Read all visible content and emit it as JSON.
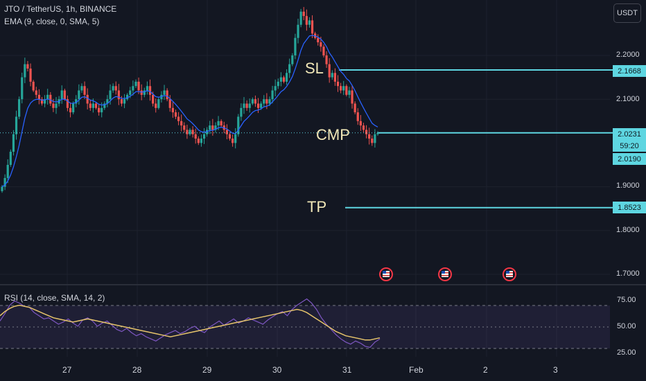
{
  "header": {
    "symbol_line": "JTO / TetherUS, 1h, BINANCE",
    "ema_line": "EMA (9, close, 0, SMA, 5)",
    "rsi_line": "RSI (14, close, SMA, 14, 2)",
    "currency": "USDT"
  },
  "annotations": {
    "sl": "SL",
    "cmp": "CMP",
    "tp": "TP"
  },
  "price_tags": {
    "sl": "2.1668",
    "cmp": "2.0231",
    "countdown": "59:20",
    "low": "2.0190",
    "tp": "1.8523"
  },
  "colors": {
    "up": "#26a69a",
    "down": "#ef5350",
    "ema": "#2962ff",
    "level": "#5ed6e1",
    "rsi": "#7e57c2",
    "rsi_ma": "#e6c46b",
    "annotation": "#f2e8b8"
  },
  "icons": [
    "us-flag-event-icon",
    "us-flag-event-icon",
    "us-flag-event-icon"
  ],
  "chart_data": [
    {
      "type": "candlestick",
      "title": "JTO / TetherUS, 1h, BINANCE",
      "x_ticks": [
        "27",
        "28",
        "29",
        "30",
        "31",
        "Feb",
        "2",
        "3"
      ],
      "y_ticks": [
        "2.2000",
        "2.1000",
        "1.9000",
        "1.8000",
        "1.7000"
      ],
      "ylim": [
        1.69,
        2.31
      ],
      "levels": [
        {
          "label": "SL",
          "value": 2.1668
        },
        {
          "label": "CMP",
          "value": 2.0231
        },
        {
          "label": "TP",
          "value": 1.8523
        }
      ],
      "closes": [
        1.9,
        1.92,
        1.95,
        1.98,
        2.02,
        2.06,
        2.1,
        2.15,
        2.18,
        2.17,
        2.14,
        2.12,
        2.11,
        2.1,
        2.09,
        2.1,
        2.11,
        2.09,
        2.08,
        2.09,
        2.1,
        2.12,
        2.1,
        2.08,
        2.07,
        2.09,
        2.1,
        2.12,
        2.13,
        2.11,
        2.09,
        2.08,
        2.09,
        2.08,
        2.07,
        2.08,
        2.09,
        2.1,
        2.12,
        2.13,
        2.12,
        2.1,
        2.09,
        2.1,
        2.11,
        2.12,
        2.13,
        2.14,
        2.12,
        2.11,
        2.12,
        2.13,
        2.11,
        2.09,
        2.08,
        2.1,
        2.11,
        2.12,
        2.1,
        2.08,
        2.07,
        2.06,
        2.05,
        2.04,
        2.03,
        2.02,
        2.03,
        2.02,
        2.01,
        2.0,
        2.01,
        2.02,
        2.03,
        2.04,
        2.03,
        2.04,
        2.05,
        2.04,
        2.03,
        2.02,
        2.01,
        2.0,
        2.02,
        2.06,
        2.08,
        2.09,
        2.08,
        2.09,
        2.1,
        2.09,
        2.08,
        2.09,
        2.1,
        2.09,
        2.1,
        2.12,
        2.13,
        2.14,
        2.15,
        2.14,
        2.16,
        2.18,
        2.2,
        2.24,
        2.27,
        2.3,
        2.29,
        2.27,
        2.28,
        2.25,
        2.24,
        2.23,
        2.22,
        2.2,
        2.18,
        2.15,
        2.16,
        2.14,
        2.13,
        2.12,
        2.13,
        2.11,
        2.12,
        2.09,
        2.07,
        2.05,
        2.04,
        2.03,
        2.02,
        2.01,
        2.0,
        2.02,
        2.023
      ],
      "ema_visible": true
    },
    {
      "type": "line",
      "title": "RSI (14, close, SMA, 14, 2)",
      "y_ticks": [
        "75.00",
        "50.00",
        "25.00"
      ],
      "ylim": [
        20,
        80
      ],
      "bands": [
        30,
        70
      ],
      "series": [
        {
          "values": [
            60,
            64,
            67,
            69,
            70,
            69,
            68,
            66,
            64,
            62,
            60,
            58,
            57,
            56,
            55,
            54,
            55,
            56,
            57,
            56,
            55,
            54,
            53,
            52,
            51,
            50,
            49,
            48,
            47,
            46,
            45,
            44,
            43,
            42,
            41,
            40,
            41,
            42,
            43,
            44,
            45,
            46,
            47,
            48,
            49,
            50,
            51,
            52,
            53,
            54,
            55,
            56,
            57,
            58,
            59,
            60,
            61,
            62,
            63,
            64,
            65,
            66,
            65,
            63,
            60,
            57,
            54,
            51,
            48,
            45,
            43,
            41,
            40,
            39,
            38,
            37,
            37,
            38,
            39
          ]
        },
        {
          "values": [
            55,
            62,
            70,
            74,
            72,
            69,
            68,
            63,
            60,
            57,
            58,
            55,
            52,
            54,
            57,
            53,
            50,
            56,
            58,
            55,
            50,
            53,
            55,
            51,
            47,
            45,
            48,
            44,
            41,
            43,
            40,
            38,
            36,
            39,
            42,
            44,
            46,
            43,
            45,
            48,
            50,
            46,
            44,
            49,
            52,
            55,
            51,
            54,
            57,
            53,
            55,
            58,
            56,
            54,
            52,
            56,
            59,
            62,
            64,
            60,
            66,
            70,
            73,
            76,
            72,
            66,
            58,
            52,
            47,
            42,
            38,
            35,
            33,
            36,
            34,
            31,
            30,
            35,
            38
          ]
        }
      ]
    }
  ]
}
